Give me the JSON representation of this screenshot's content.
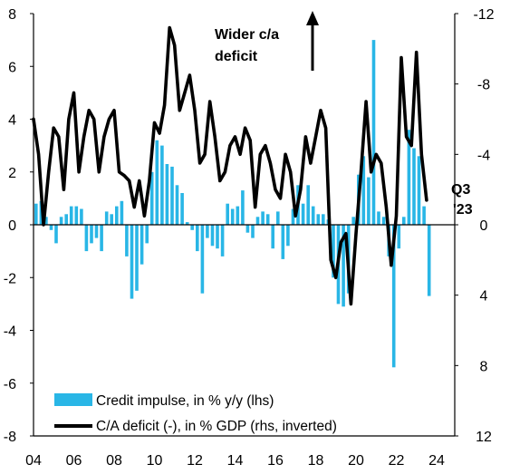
{
  "chart_data": {
    "type": "bar+line",
    "title": "",
    "colors": {
      "bars": "#29B6E6",
      "line": "#000000"
    },
    "axes": {
      "left": {
        "min": -8,
        "max": 8,
        "ticks": [
          "8",
          "6",
          "4",
          "2",
          "0",
          "-2",
          "-4",
          "-6",
          "-8"
        ],
        "label": ""
      },
      "right": {
        "min": -12,
        "max": 12,
        "inverted": true,
        "ticks": [
          "-12",
          "-8",
          "-4",
          "0",
          "4",
          "8",
          "12"
        ],
        "label": ""
      },
      "x": {
        "min": 2004,
        "max": 2024.9,
        "ticks": [
          "04",
          "06",
          "08",
          "10",
          "12",
          "14",
          "16",
          "18",
          "20",
          "22",
          "24"
        ]
      }
    },
    "legend": {
      "position": "bottom-left",
      "entries": [
        {
          "label": "Credit impulse, in % y/y (lhs)",
          "kind": "bar"
        },
        {
          "label": "C/A deficit (-), in % GDP (rhs, inverted)",
          "kind": "line"
        }
      ]
    },
    "annotations": {
      "wider": "Wider c/a",
      "deficit": "deficit",
      "q3": "Q3",
      "yr": "'23"
    },
    "series": [
      {
        "name": "Credit impulse, in % y/y (lhs)",
        "axis": "left",
        "kind": "bar",
        "x": [
          2004.0,
          2004.25,
          2004.5,
          2004.75,
          2005.0,
          2005.25,
          2005.5,
          2005.75,
          2006.0,
          2006.25,
          2006.5,
          2006.75,
          2007.0,
          2007.25,
          2007.5,
          2007.75,
          2008.0,
          2008.25,
          2008.5,
          2008.75,
          2009.0,
          2009.25,
          2009.5,
          2009.75,
          2010.0,
          2010.25,
          2010.5,
          2010.75,
          2011.0,
          2011.25,
          2011.5,
          2011.75,
          2012.0,
          2012.25,
          2012.5,
          2012.75,
          2013.0,
          2013.25,
          2013.5,
          2013.75,
          2014.0,
          2014.25,
          2014.5,
          2014.75,
          2015.0,
          2015.25,
          2015.5,
          2015.75,
          2016.0,
          2016.25,
          2016.5,
          2016.75,
          2017.0,
          2017.25,
          2017.5,
          2017.75,
          2018.0,
          2018.25,
          2018.5,
          2018.75,
          2019.0,
          2019.25,
          2019.5,
          2019.75,
          2020.0,
          2020.25,
          2020.5,
          2020.75,
          2021.0,
          2021.25,
          2021.5,
          2021.75,
          2022.0,
          2022.25,
          2022.5,
          2022.75,
          2023.0,
          2023.25,
          2023.5
        ],
        "values": [
          0.8,
          0.9,
          0.3,
          -0.2,
          -0.7,
          0.3,
          0.4,
          0.7,
          0.7,
          0.6,
          -1.0,
          -0.7,
          -0.5,
          -1.0,
          0.5,
          0.4,
          0.7,
          0.9,
          -1.2,
          -2.8,
          -2.5,
          -1.5,
          -0.7,
          2.0,
          3.2,
          3.0,
          2.3,
          2.2,
          1.5,
          1.2,
          0.1,
          -0.2,
          -1.0,
          -2.6,
          -0.5,
          -0.8,
          -0.9,
          -1.2,
          0.8,
          0.6,
          0.7,
          1.3,
          -0.3,
          -0.5,
          0.3,
          0.5,
          0.4,
          -0.9,
          0.5,
          -1.3,
          -0.8,
          0.6,
          1.5,
          0.8,
          1.5,
          0.7,
          0.4,
          0.4,
          0.2,
          -2.0,
          -3.0,
          -3.1,
          -2.6,
          0.3,
          1.9,
          2.6,
          1.8,
          7.0,
          0.5,
          0.3,
          -1.2,
          -5.4,
          -0.9,
          0.3,
          3.6,
          2.9,
          2.6,
          0.7,
          -2.7
        ]
      },
      {
        "name": "C/A deficit (-), in % GDP (rhs, inverted)",
        "axis": "right",
        "kind": "line",
        "x": [
          2004.0,
          2004.25,
          2004.5,
          2004.75,
          2005.0,
          2005.25,
          2005.5,
          2005.75,
          2006.0,
          2006.25,
          2006.5,
          2006.75,
          2007.0,
          2007.25,
          2007.5,
          2007.75,
          2008.0,
          2008.25,
          2008.5,
          2008.75,
          2009.0,
          2009.25,
          2009.5,
          2009.75,
          2010.0,
          2010.25,
          2010.5,
          2010.75,
          2011.0,
          2011.25,
          2011.5,
          2011.75,
          2012.0,
          2012.25,
          2012.5,
          2012.75,
          2013.0,
          2013.25,
          2013.5,
          2013.75,
          2014.0,
          2014.25,
          2014.5,
          2014.75,
          2015.0,
          2015.25,
          2015.5,
          2015.75,
          2016.0,
          2016.25,
          2016.5,
          2016.75,
          2017.0,
          2017.25,
          2017.5,
          2017.75,
          2018.0,
          2018.25,
          2018.5,
          2018.75,
          2019.0,
          2019.25,
          2019.5,
          2019.75,
          2020.0,
          2020.25,
          2020.5,
          2020.75,
          2021.0,
          2021.25,
          2021.5,
          2021.75,
          2022.0,
          2022.25,
          2022.5,
          2022.75,
          2023.0,
          2023.25,
          2023.5
        ],
        "values": [
          -6.0,
          -4.0,
          0.0,
          -3.0,
          -5.5,
          -5.0,
          -2.0,
          -6.0,
          -7.5,
          -3.0,
          -5.0,
          -6.5,
          -6.0,
          -3.0,
          -5.0,
          -6.0,
          -6.5,
          -3.0,
          -2.8,
          -2.5,
          -1.0,
          -2.5,
          -0.5,
          -2.5,
          -5.8,
          -5.2,
          -6.8,
          -11.2,
          -10.2,
          -6.5,
          -7.5,
          -8.5,
          -6.5,
          -3.5,
          -4.0,
          -7.0,
          -5.0,
          -2.5,
          -3.0,
          -4.5,
          -5.0,
          -4.0,
          -5.5,
          -4.8,
          -1.0,
          -4.0,
          -4.5,
          -3.5,
          -2.0,
          -1.5,
          -4.0,
          -3.0,
          -0.5,
          -2.0,
          -5.0,
          -3.5,
          -5.0,
          -6.5,
          -5.5,
          2.0,
          3.0,
          1.0,
          0.5,
          4.5,
          0.5,
          -3.0,
          -7.0,
          -3.0,
          -4.0,
          -3.5,
          -1.0,
          2.3,
          -0.5,
          -9.5,
          -5.0,
          -4.5,
          -9.8,
          -4.0,
          -1.4
        ]
      }
    ]
  }
}
